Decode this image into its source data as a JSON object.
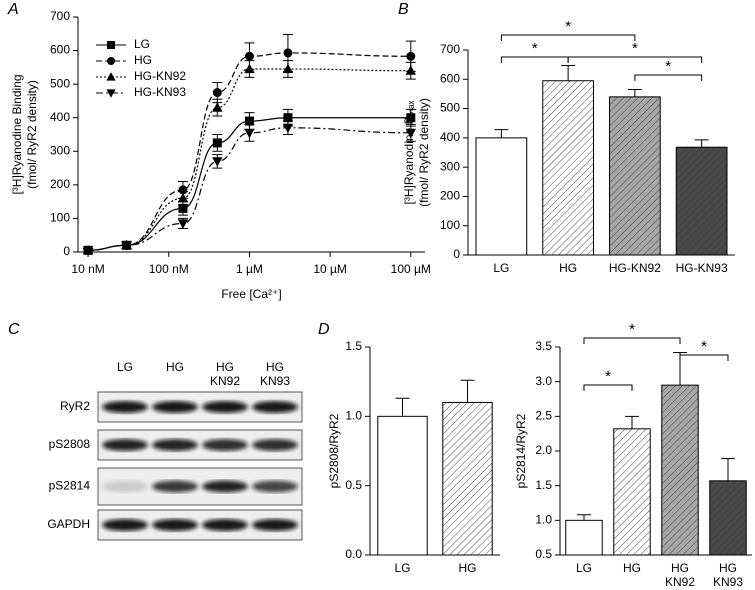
{
  "panel_labels": [
    "A",
    "B",
    "C",
    "D"
  ],
  "chart_data": [
    {
      "type": "line",
      "x_label": "Free [Ca²⁺]",
      "y_label": [
        "[³H]Ryanodine Binding",
        "(fmol/ RyR2 density)"
      ],
      "x": [
        0.01,
        0.03,
        0.15,
        0.4,
        1,
        3,
        100
      ],
      "xscale": "log",
      "xlim": [
        0.0075,
        150
      ],
      "xticks": [
        {
          "value": 0.01,
          "label": "10 nM"
        },
        {
          "value": 0.1,
          "label": "100 nM"
        },
        {
          "value": 1,
          "label": "1 µM"
        },
        {
          "value": 10,
          "label": "10 µM"
        },
        {
          "value": 100,
          "label": "100 µM"
        }
      ],
      "ylim": [
        0,
        700
      ],
      "yticks": [
        0,
        100,
        200,
        300,
        400,
        500,
        600,
        700
      ],
      "legend": "upper left",
      "series": [
        {
          "name": "LG",
          "color": "#000000",
          "marker": "square",
          "dash": "solid",
          "values": [
            5,
            20,
            130,
            325,
            390,
            400,
            400
          ],
          "errors": [
            5,
            10,
            20,
            25,
            25,
            25,
            25
          ]
        },
        {
          "name": "HG",
          "color": "#000000",
          "marker": "circle",
          "dash": "dashed",
          "values": [
            5,
            20,
            185,
            475,
            583,
            593,
            583
          ],
          "errors": [
            5,
            10,
            25,
            30,
            40,
            55,
            45
          ]
        },
        {
          "name": "HG-KN92",
          "color": "#000000",
          "marker": "triangle-up",
          "dash": "dotted",
          "values": [
            5,
            20,
            160,
            430,
            545,
            545,
            540
          ],
          "errors": [
            5,
            10,
            20,
            25,
            25,
            25,
            25
          ]
        },
        {
          "name": "HG-KN93",
          "color": "#000000",
          "marker": "triangle-down",
          "dash": "dashdot",
          "values": [
            5,
            20,
            85,
            270,
            355,
            370,
            355
          ],
          "errors": [
            5,
            10,
            15,
            20,
            25,
            20,
            25
          ]
        }
      ]
    },
    {
      "type": "bar",
      "y_label": [
        "[³H]Ryanodine Bₘₐₓ",
        "(fmol/ RyR2 density)"
      ],
      "categories": [
        "LG",
        "HG",
        "HG-KN92",
        "HG-KN93"
      ],
      "values": [
        400,
        595,
        540,
        368
      ],
      "errors": [
        28,
        52,
        25,
        25
      ],
      "colors": [
        "#ffffff",
        "#ffffff",
        "#a6a6a6",
        "#4a4a4a"
      ],
      "hatch": [
        false,
        true,
        true,
        true
      ],
      "ylim": [
        0,
        700
      ],
      "yticks": [
        0,
        100,
        200,
        300,
        400,
        500,
        600,
        700
      ],
      "annotations": [
        "*",
        "*",
        "*",
        "*"
      ]
    },
    {
      "type": "bar",
      "y_label": [
        "pS2808/RyR2"
      ],
      "categories": [
        "LG",
        "HG"
      ],
      "values": [
        1.0,
        1.1
      ],
      "errors": [
        0.13,
        0.16
      ],
      "colors": [
        "#ffffff",
        "#ffffff"
      ],
      "hatch": [
        false,
        true
      ],
      "ylim": [
        0,
        1.5
      ],
      "yticks": [
        {
          "value": 0,
          "label": "0.0"
        },
        0.5,
        {
          "value": 1,
          "label": "1.0"
        },
        1.5
      ],
      "annotations": []
    },
    {
      "type": "bar",
      "y_label": [
        "pS2814/RyR2"
      ],
      "categories": [
        "LG",
        "HG",
        "HG\nKN92",
        "HG\nKN93"
      ],
      "values": [
        1.0,
        2.32,
        2.95,
        1.57
      ],
      "errors": [
        0.08,
        0.18,
        0.47,
        0.32
      ],
      "colors": [
        "#ffffff",
        "#ffffff",
        "#a6a6a6",
        "#4a4a4a"
      ],
      "hatch": [
        false,
        true,
        true,
        true
      ],
      "ylim": [
        0.5,
        3.5
      ],
      "yticks": [
        0.5,
        {
          "value": 1,
          "label": "1.0"
        },
        1.5,
        {
          "value": 2,
          "label": "2.0"
        },
        2.5,
        {
          "value": 3,
          "label": "3.0"
        },
        3.5
      ],
      "annotations": [
        "*",
        "*",
        "*"
      ]
    }
  ],
  "blot": {
    "lanes": [
      "LG",
      "HG",
      "HG\nKN92",
      "HG\nKN93"
    ],
    "rows": [
      "RyR2",
      "pS2808",
      "pS2814",
      "GAPDH"
    ]
  }
}
